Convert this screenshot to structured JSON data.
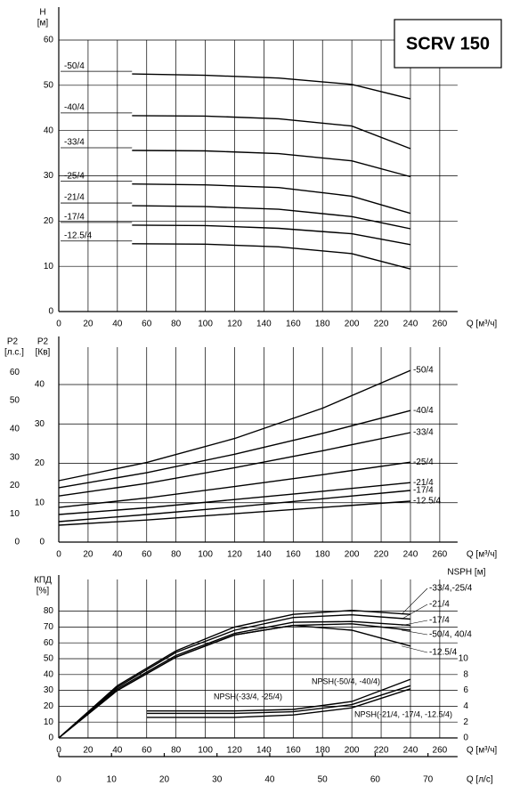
{
  "title_box": "SCRV 150",
  "chart_data": [
    {
      "type": "line",
      "y_label": "H",
      "y_unit": "[м]",
      "x_label": "Q [м³/ч]",
      "color": "#000000",
      "grid": true,
      "xlim": [
        0,
        302
      ],
      "xticks": [
        0,
        20,
        40,
        60,
        80,
        100,
        120,
        140,
        160,
        180,
        200,
        220,
        240,
        260
      ],
      "ylim": [
        0,
        60
      ],
      "yticks": [
        0,
        10,
        20,
        30,
        40,
        50,
        60
      ],
      "series": [
        {
          "name": "-50/4",
          "x": [
            50,
            100,
            150,
            200,
            240
          ],
          "values": [
            52.5,
            52.2,
            51.6,
            50.2,
            47
          ]
        },
        {
          "name": "-40/4",
          "x": [
            50,
            100,
            150,
            200,
            240
          ],
          "values": [
            43.3,
            43.2,
            42.6,
            41,
            36
          ]
        },
        {
          "name": "-33/4",
          "x": [
            50,
            100,
            150,
            200,
            240
          ],
          "values": [
            35.6,
            35.5,
            34.9,
            33.3,
            29.8
          ]
        },
        {
          "name": "-25/4",
          "x": [
            50,
            100,
            150,
            200,
            240
          ],
          "values": [
            28.2,
            28,
            27.4,
            25.5,
            21.7
          ]
        },
        {
          "name": "-21/4",
          "x": [
            50,
            100,
            150,
            200,
            240
          ],
          "values": [
            23.4,
            23.2,
            22.6,
            21,
            18.3
          ]
        },
        {
          "name": "-17/4",
          "x": [
            50,
            100,
            150,
            200,
            240
          ],
          "values": [
            19.1,
            19,
            18.4,
            17.2,
            14.8
          ]
        },
        {
          "name": "-12.5/4",
          "x": [
            50,
            100,
            150,
            200,
            240
          ],
          "values": [
            15,
            14.9,
            14.3,
            12.8,
            9.4
          ]
        }
      ]
    },
    {
      "type": "line",
      "y_label": "P2",
      "y_unit": "[Кв]",
      "y2_label": "P2",
      "y2_unit": "[л.с.]",
      "y2_side": "left",
      "x_label": "Q [м³/ч]",
      "color": "#000000",
      "grid": true,
      "xlim": [
        0,
        302
      ],
      "xticks": [
        0,
        20,
        40,
        60,
        80,
        100,
        120,
        140,
        160,
        180,
        200,
        220,
        240,
        260
      ],
      "ylim": [
        0,
        49.5
      ],
      "yticks": [
        0,
        10,
        20,
        30,
        40
      ],
      "y2lim": [
        0,
        68.9
      ],
      "y2ticks": [
        0,
        10,
        20,
        30,
        40,
        50,
        60
      ],
      "series": [
        {
          "name": "-50/4",
          "x": [
            0,
            60,
            120,
            180,
            240
          ],
          "values": [
            15.6,
            20.2,
            26.3,
            34,
            43.6
          ]
        },
        {
          "name": "-40/4",
          "x": [
            0,
            60,
            120,
            180,
            240
          ],
          "values": [
            13.8,
            17.6,
            22.3,
            27.6,
            33.4
          ]
        },
        {
          "name": "-33/4",
          "x": [
            0,
            60,
            120,
            180,
            240
          ],
          "values": [
            11.7,
            14.9,
            18.9,
            23.2,
            27.8
          ]
        },
        {
          "name": "-25/4",
          "x": [
            0,
            60,
            120,
            180,
            240
          ],
          "values": [
            8.8,
            11.2,
            14.1,
            17.1,
            20.3
          ]
        },
        {
          "name": "-21/4",
          "x": [
            0,
            60,
            120,
            180,
            240
          ],
          "values": [
            7,
            8.7,
            10.8,
            12.9,
            15.1
          ]
        },
        {
          "name": "-17/4",
          "x": [
            0,
            60,
            120,
            180,
            240
          ],
          "values": [
            5.2,
            7,
            8.9,
            11,
            13.1
          ]
        },
        {
          "name": "-12.5/4",
          "x": [
            0,
            60,
            120,
            180,
            240
          ],
          "values": [
            4.3,
            5.6,
            7.2,
            8.8,
            10.4
          ]
        }
      ]
    },
    {
      "type": "line",
      "y_label": "КПД",
      "y_unit": "[%]",
      "y2_label": "NSPH [м]",
      "y2_side": "right",
      "x_label": "Q [м³/ч]",
      "x2_label": "Q [л/с]",
      "color": "#000000",
      "grid": true,
      "xlim": [
        0,
        302
      ],
      "xticks": [
        0,
        20,
        40,
        60,
        80,
        100,
        120,
        140,
        160,
        180,
        200,
        220,
        240,
        260
      ],
      "x2lim": [
        0,
        83.9
      ],
      "x2ticks": [
        0,
        10,
        20,
        30,
        40,
        50,
        60,
        70
      ],
      "ylim": [
        0,
        100
      ],
      "yticks": [
        0,
        10,
        20,
        30,
        40,
        50,
        60,
        70,
        80
      ],
      "y2lim": [
        0,
        20
      ],
      "y2ticks": [
        0,
        2,
        4,
        6,
        8,
        10
      ],
      "series": [
        {
          "name": "-33/4,-25/4",
          "x": [
            0,
            40,
            80,
            120,
            160,
            200,
            240
          ],
          "values": [
            0,
            33,
            55,
            70,
            78,
            80.5,
            78
          ]
        },
        {
          "name": "-21/4",
          "x": [
            0,
            40,
            80,
            120,
            160,
            200,
            240
          ],
          "values": [
            0,
            32,
            54,
            68,
            76,
            77.7,
            75
          ]
        },
        {
          "name": "-17/4",
          "x": [
            0,
            40,
            80,
            120,
            160,
            200,
            240
          ],
          "values": [
            0,
            31,
            52,
            66,
            73,
            73.5,
            71
          ]
        },
        {
          "name": "-50/4, 40/4",
          "x": [
            0,
            40,
            80,
            120,
            160,
            200,
            240
          ],
          "values": [
            0,
            30,
            51,
            65,
            71,
            72,
            68
          ]
        },
        {
          "name": "-12.5/4",
          "x": [
            0,
            40,
            80,
            120,
            160,
            200,
            240
          ],
          "values": [
            0,
            30,
            51,
            65,
            71,
            68,
            58
          ]
        },
        {
          "name": "NPSH(-33/4, -25/4)",
          "axis": "y2",
          "x": [
            60,
            120,
            160,
            200,
            240
          ],
          "values": [
            3.4,
            3.4,
            3.6,
            4.6,
            7.4
          ]
        },
        {
          "name": "NPSH(-50/4, -40/4)",
          "axis": "y2",
          "x": [
            60,
            120,
            160,
            200,
            240
          ],
          "values": [
            3.1,
            3.1,
            3.3,
            4.2,
            6.6
          ]
        },
        {
          "name": "NPSH(-21/4, -17/4, -12.5/4)",
          "axis": "y2",
          "x": [
            60,
            120,
            160,
            200,
            240
          ],
          "values": [
            2.6,
            2.6,
            2.9,
            3.8,
            6.2
          ]
        }
      ]
    }
  ]
}
